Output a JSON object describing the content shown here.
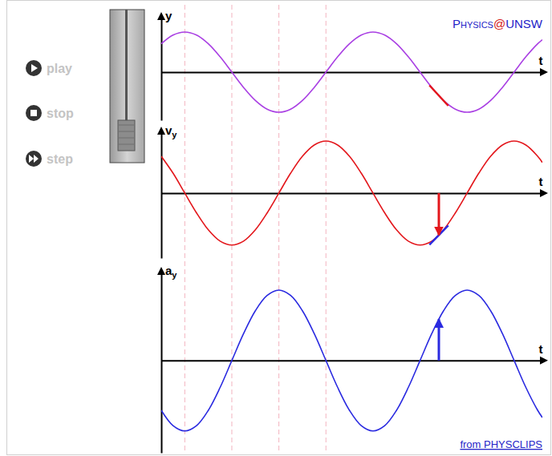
{
  "brand": [
    "Physics",
    "@",
    "UNSW"
  ],
  "controls": [
    "play",
    "stop",
    "step"
  ],
  "credit": "from PHYSCLIPS",
  "time_guides": [
    0.5,
    1.5,
    2.5,
    3.5
  ],
  "chart_data": [
    {
      "type": "line",
      "x_label": "t",
      "y_label": "y",
      "xlim": [
        0,
        8.1
      ],
      "ylim": [
        -1.2,
        1.36
      ],
      "tick_labels": false,
      "x": [
        0,
        0.25,
        0.5,
        0.75,
        1,
        1.25,
        1.5,
        1.75,
        2,
        2.25,
        2.5,
        2.75,
        3,
        3.25,
        3.5,
        3.75,
        4,
        4.25,
        4.5,
        4.75,
        5,
        5.25,
        5.5,
        5.75,
        6,
        6.25,
        6.5,
        6.75,
        7,
        7.25,
        7.5,
        7.75,
        8,
        8.1
      ],
      "series": [
        {
          "color": "#a93fe3",
          "values": [
            0.707,
            0.924,
            1,
            0.924,
            0.707,
            0.383,
            0,
            -0.383,
            -0.707,
            -0.924,
            -1,
            -0.924,
            -0.707,
            -0.383,
            0,
            0.383,
            0.707,
            0.924,
            1,
            0.924,
            0.707,
            0.383,
            0,
            -0.383,
            -0.707,
            -0.924,
            -1,
            -0.924,
            -0.707,
            -0.383,
            0,
            0.383,
            0.707,
            0.809
          ]
        }
      ],
      "tangent": {
        "x": [
          5.7,
          6.1
        ],
        "values": [
          -0.33,
          -0.84
        ],
        "color": "#e3161b"
      }
    },
    {
      "type": "line",
      "x_label": "t",
      "y_label": "vy",
      "xlim": [
        0,
        8.1
      ],
      "ylim": [
        -1.25,
        1.17
      ],
      "tick_labels": false,
      "x": [
        0,
        0.25,
        0.5,
        0.75,
        1,
        1.25,
        1.5,
        1.75,
        2,
        2.25,
        2.5,
        2.75,
        3,
        3.25,
        3.5,
        3.75,
        4,
        4.25,
        4.5,
        4.75,
        5,
        5.25,
        5.5,
        5.75,
        6,
        6.25,
        6.5,
        6.75,
        7,
        7.25,
        7.5,
        7.75,
        8,
        8.1
      ],
      "series": [
        {
          "color": "#e3161b",
          "values": [
            0.707,
            0.383,
            0,
            -0.383,
            -0.707,
            -0.924,
            -1,
            -0.924,
            -0.707,
            -0.383,
            0,
            0.383,
            0.707,
            0.924,
            1,
            0.924,
            0.707,
            0.383,
            0,
            -0.383,
            -0.707,
            -0.924,
            -1,
            -0.924,
            -0.707,
            -0.383,
            0,
            0.383,
            0.707,
            0.924,
            1,
            0.924,
            0.707,
            0.588
          ]
        }
      ],
      "tangent": {
        "x": [
          5.7,
          6.1
        ],
        "values": [
          -0.994,
          -0.624
        ],
        "color": "#2a2ae0"
      },
      "arrow": {
        "x": 5.9,
        "from": 0,
        "to": -0.809,
        "color": "#e3161b"
      }
    },
    {
      "type": "line",
      "x_label": "t",
      "y_label": "ay",
      "xlim": [
        0,
        8.1
      ],
      "ylim": [
        -1.31,
        1.25
      ],
      "tick_labels": false,
      "x": [
        0,
        0.25,
        0.5,
        0.75,
        1,
        1.25,
        1.5,
        1.75,
        2,
        2.25,
        2.5,
        2.75,
        3,
        3.25,
        3.5,
        3.75,
        4,
        4.25,
        4.5,
        4.75,
        5,
        5.25,
        5.5,
        5.75,
        6,
        6.25,
        6.5,
        6.75,
        7,
        7.25,
        7.5,
        7.75,
        8,
        8.1
      ],
      "series": [
        {
          "color": "#2a2ae0",
          "values": [
            -0.707,
            -0.924,
            -1,
            -0.924,
            -0.707,
            -0.383,
            0,
            0.383,
            0.707,
            0.924,
            1,
            0.924,
            0.707,
            0.383,
            0,
            -0.383,
            -0.707,
            -0.924,
            -1,
            -0.924,
            -0.707,
            -0.383,
            0,
            0.383,
            0.707,
            0.924,
            1,
            0.924,
            0.707,
            0.383,
            0,
            -0.383,
            -0.707,
            -0.809
          ]
        }
      ],
      "arrow": {
        "x": 5.9,
        "from": 0,
        "to": 0.588,
        "color": "#2a2ae0"
      }
    }
  ]
}
